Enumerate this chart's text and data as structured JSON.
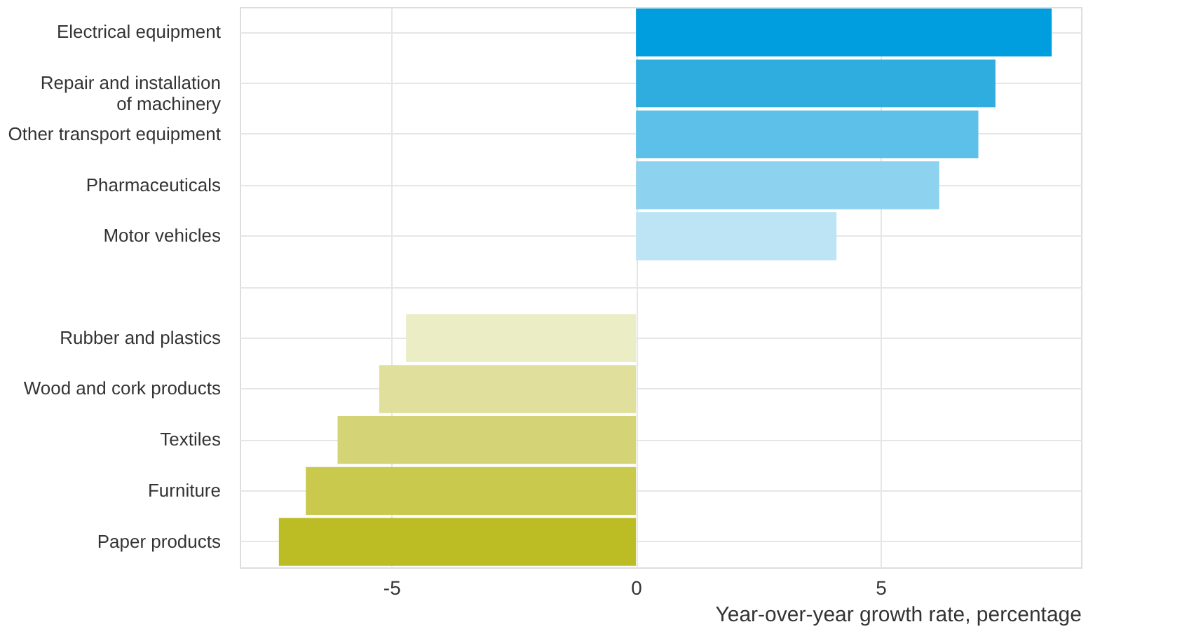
{
  "chart_data": {
    "type": "bar",
    "orientation": "horizontal",
    "xlabel": "Year-over-year growth rate, percentage",
    "categories": [
      "Electrical equipment",
      "Repair and installation\nof machinery",
      "Other transport equipment",
      "Pharmaceuticals",
      "Motor vehicles",
      null,
      "Rubber and plastics",
      "Wood and cork products",
      "Textiles",
      "Furniture",
      "Paper products"
    ],
    "values": [
      8.5,
      7.35,
      7.0,
      6.2,
      4.1,
      null,
      -4.7,
      -5.25,
      -6.1,
      -6.75,
      -7.3
    ],
    "colors": [
      "#009ddf",
      "#30addf",
      "#5dc0e8",
      "#8dd2ef",
      "#bce4f4",
      null,
      "#ebedc5",
      "#e0e09c",
      "#d4d477",
      "#c9c94e",
      "#bcbd24"
    ],
    "xlim": [
      -8.1,
      9.1
    ],
    "xticks": [
      -5,
      0,
      5
    ],
    "grid": true
  }
}
